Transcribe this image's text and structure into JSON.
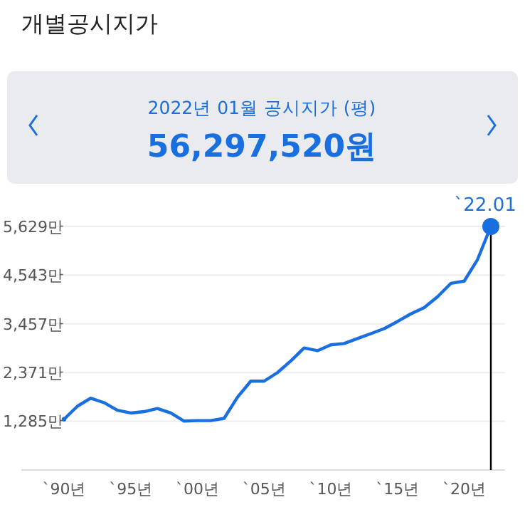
{
  "chart_data": {
    "type": "line",
    "title": "개별공시지가",
    "subtitle": "2022년 01월 공시지가 (평)",
    "annotations": [
      "56,297,520원",
      {
        "text": "`22.01",
        "y": 5629
      }
    ],
    "categories": [
      "`90년",
      null,
      null,
      null,
      null,
      "`95년",
      null,
      null,
      null,
      null,
      "`00년",
      null,
      null,
      null,
      null,
      "`05년",
      null,
      null,
      null,
      null,
      "`10년",
      null,
      null,
      null,
      null,
      "`15년",
      null,
      null,
      null,
      null,
      "`20년",
      null,
      null
    ],
    "series": [
      {
        "color": "#1a6fe0",
        "values": [
          1330,
          1620,
          1800,
          1700,
          1530,
          1470,
          1500,
          1570,
          1470,
          1290,
          1300,
          1300,
          1350,
          1820,
          2180,
          2180,
          2370,
          2630,
          2920,
          2860,
          2990,
          3020,
          3130,
          3240,
          3350,
          3510,
          3680,
          3820,
          4060,
          4360,
          4410,
          4890,
          5629
        ]
      }
    ],
    "ylim": [
      199,
      5629
    ],
    "yticks": [
      {
        "value": 1285,
        "label": "1,285만"
      },
      {
        "value": 2371,
        "label": "2,371만"
      },
      {
        "value": 3457,
        "label": "3,457만"
      },
      {
        "value": 4543,
        "label": "4,543만"
      },
      {
        "value": 5629,
        "label": "5,629만"
      }
    ],
    "grid": "y",
    "marker": "none",
    "line_style": "solid"
  }
}
